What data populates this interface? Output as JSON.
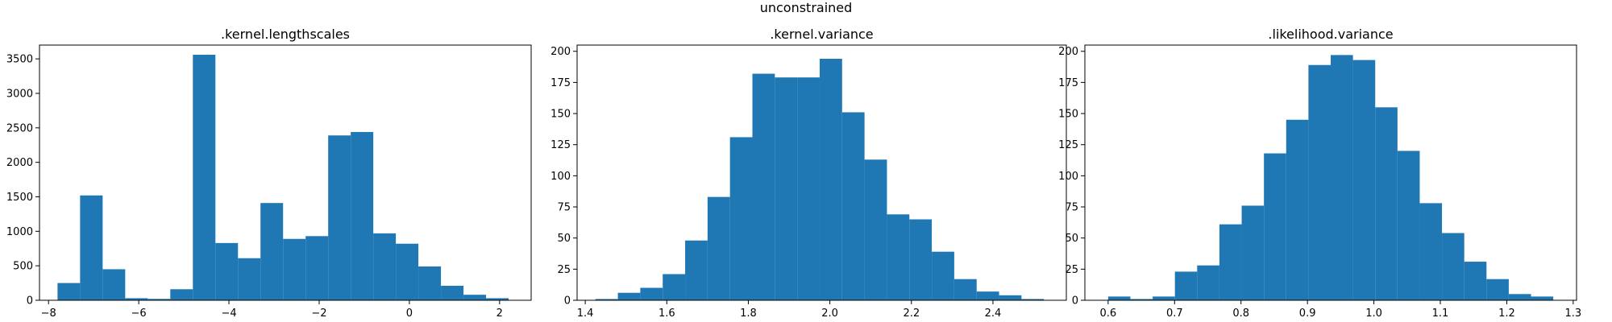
{
  "figure": {
    "suptitle": "unconstrained",
    "bar_color": "#1f77b4"
  },
  "chart_data": [
    {
      "type": "bar",
      "title": ".kernel.lengthscales",
      "xlabel": "",
      "ylabel": "",
      "xlim": [
        -8.2,
        2.7
      ],
      "ylim": [
        0,
        3700
      ],
      "xticks": [
        -8,
        -6,
        -4,
        -2,
        0,
        2
      ],
      "xtick_labels": [
        "−8",
        "−6",
        "−4",
        "−2",
        "0",
        "2"
      ],
      "yticks": [
        0,
        500,
        1000,
        1500,
        2000,
        2500,
        3000,
        3500
      ],
      "ytick_labels": [
        "0",
        "500",
        "1000",
        "1500",
        "2000",
        "2500",
        "3000",
        "3500"
      ],
      "bin_edges": [
        -7.8,
        -7.3,
        -6.8,
        -6.3,
        -5.8,
        -5.3,
        -4.8,
        -4.3,
        -3.8,
        -3.3,
        -2.8,
        -2.3,
        -1.8,
        -1.3,
        -0.8,
        -0.3,
        0.2,
        0.7,
        1.2,
        1.7,
        2.2
      ],
      "counts": [
        250,
        1520,
        450,
        30,
        20,
        160,
        3560,
        830,
        610,
        1410,
        890,
        930,
        2390,
        2440,
        970,
        820,
        490,
        210,
        80,
        30
      ]
    },
    {
      "type": "bar",
      "title": ".kernel.variance",
      "xlabel": "",
      "ylabel": "",
      "xlim": [
        1.38,
        2.58
      ],
      "ylim": [
        0,
        205
      ],
      "xticks": [
        1.4,
        1.6,
        1.8,
        2.0,
        2.2,
        2.4
      ],
      "xtick_labels": [
        "1.4",
        "1.6",
        "1.8",
        "2.0",
        "2.2",
        "2.4"
      ],
      "yticks": [
        0,
        25,
        50,
        75,
        100,
        125,
        150,
        175,
        200
      ],
      "ytick_labels": [
        "0",
        "25",
        "50",
        "75",
        "100",
        "125",
        "150",
        "175",
        "200"
      ],
      "bin_edges": [
        1.425,
        1.48,
        1.535,
        1.59,
        1.645,
        1.7,
        1.755,
        1.81,
        1.865,
        1.92,
        1.975,
        2.03,
        2.085,
        2.14,
        2.195,
        2.25,
        2.305,
        2.36,
        2.415,
        2.47,
        2.525
      ],
      "counts": [
        1,
        6,
        10,
        21,
        48,
        83,
        131,
        182,
        179,
        179,
        194,
        151,
        113,
        69,
        65,
        39,
        17,
        7,
        4,
        1
      ]
    },
    {
      "type": "bar",
      "title": ".likelihood.variance",
      "xlabel": "",
      "ylabel": "",
      "xlim": [
        0.565,
        1.305
      ],
      "ylim": [
        0,
        205
      ],
      "xticks": [
        0.6,
        0.7,
        0.8,
        0.9,
        1.0,
        1.1,
        1.2,
        1.3
      ],
      "xtick_labels": [
        "0.6",
        "0.7",
        "0.8",
        "0.9",
        "1.0",
        "1.1",
        "1.2",
        "1.3"
      ],
      "yticks": [
        0,
        25,
        50,
        75,
        100,
        125,
        150,
        175,
        200
      ],
      "ytick_labels": [
        "0",
        "25",
        "50",
        "75",
        "100",
        "125",
        "150",
        "175",
        "200"
      ],
      "bin_edges": [
        0.6,
        0.6335,
        0.667,
        0.7005,
        0.734,
        0.7675,
        0.801,
        0.8345,
        0.868,
        0.9015,
        0.935,
        0.9685,
        1.002,
        1.0355,
        1.069,
        1.1025,
        1.136,
        1.1695,
        1.203,
        1.2365,
        1.27
      ],
      "counts": [
        3,
        1,
        3,
        23,
        28,
        61,
        76,
        118,
        145,
        189,
        197,
        193,
        155,
        120,
        78,
        54,
        31,
        17,
        5,
        3
      ]
    }
  ]
}
